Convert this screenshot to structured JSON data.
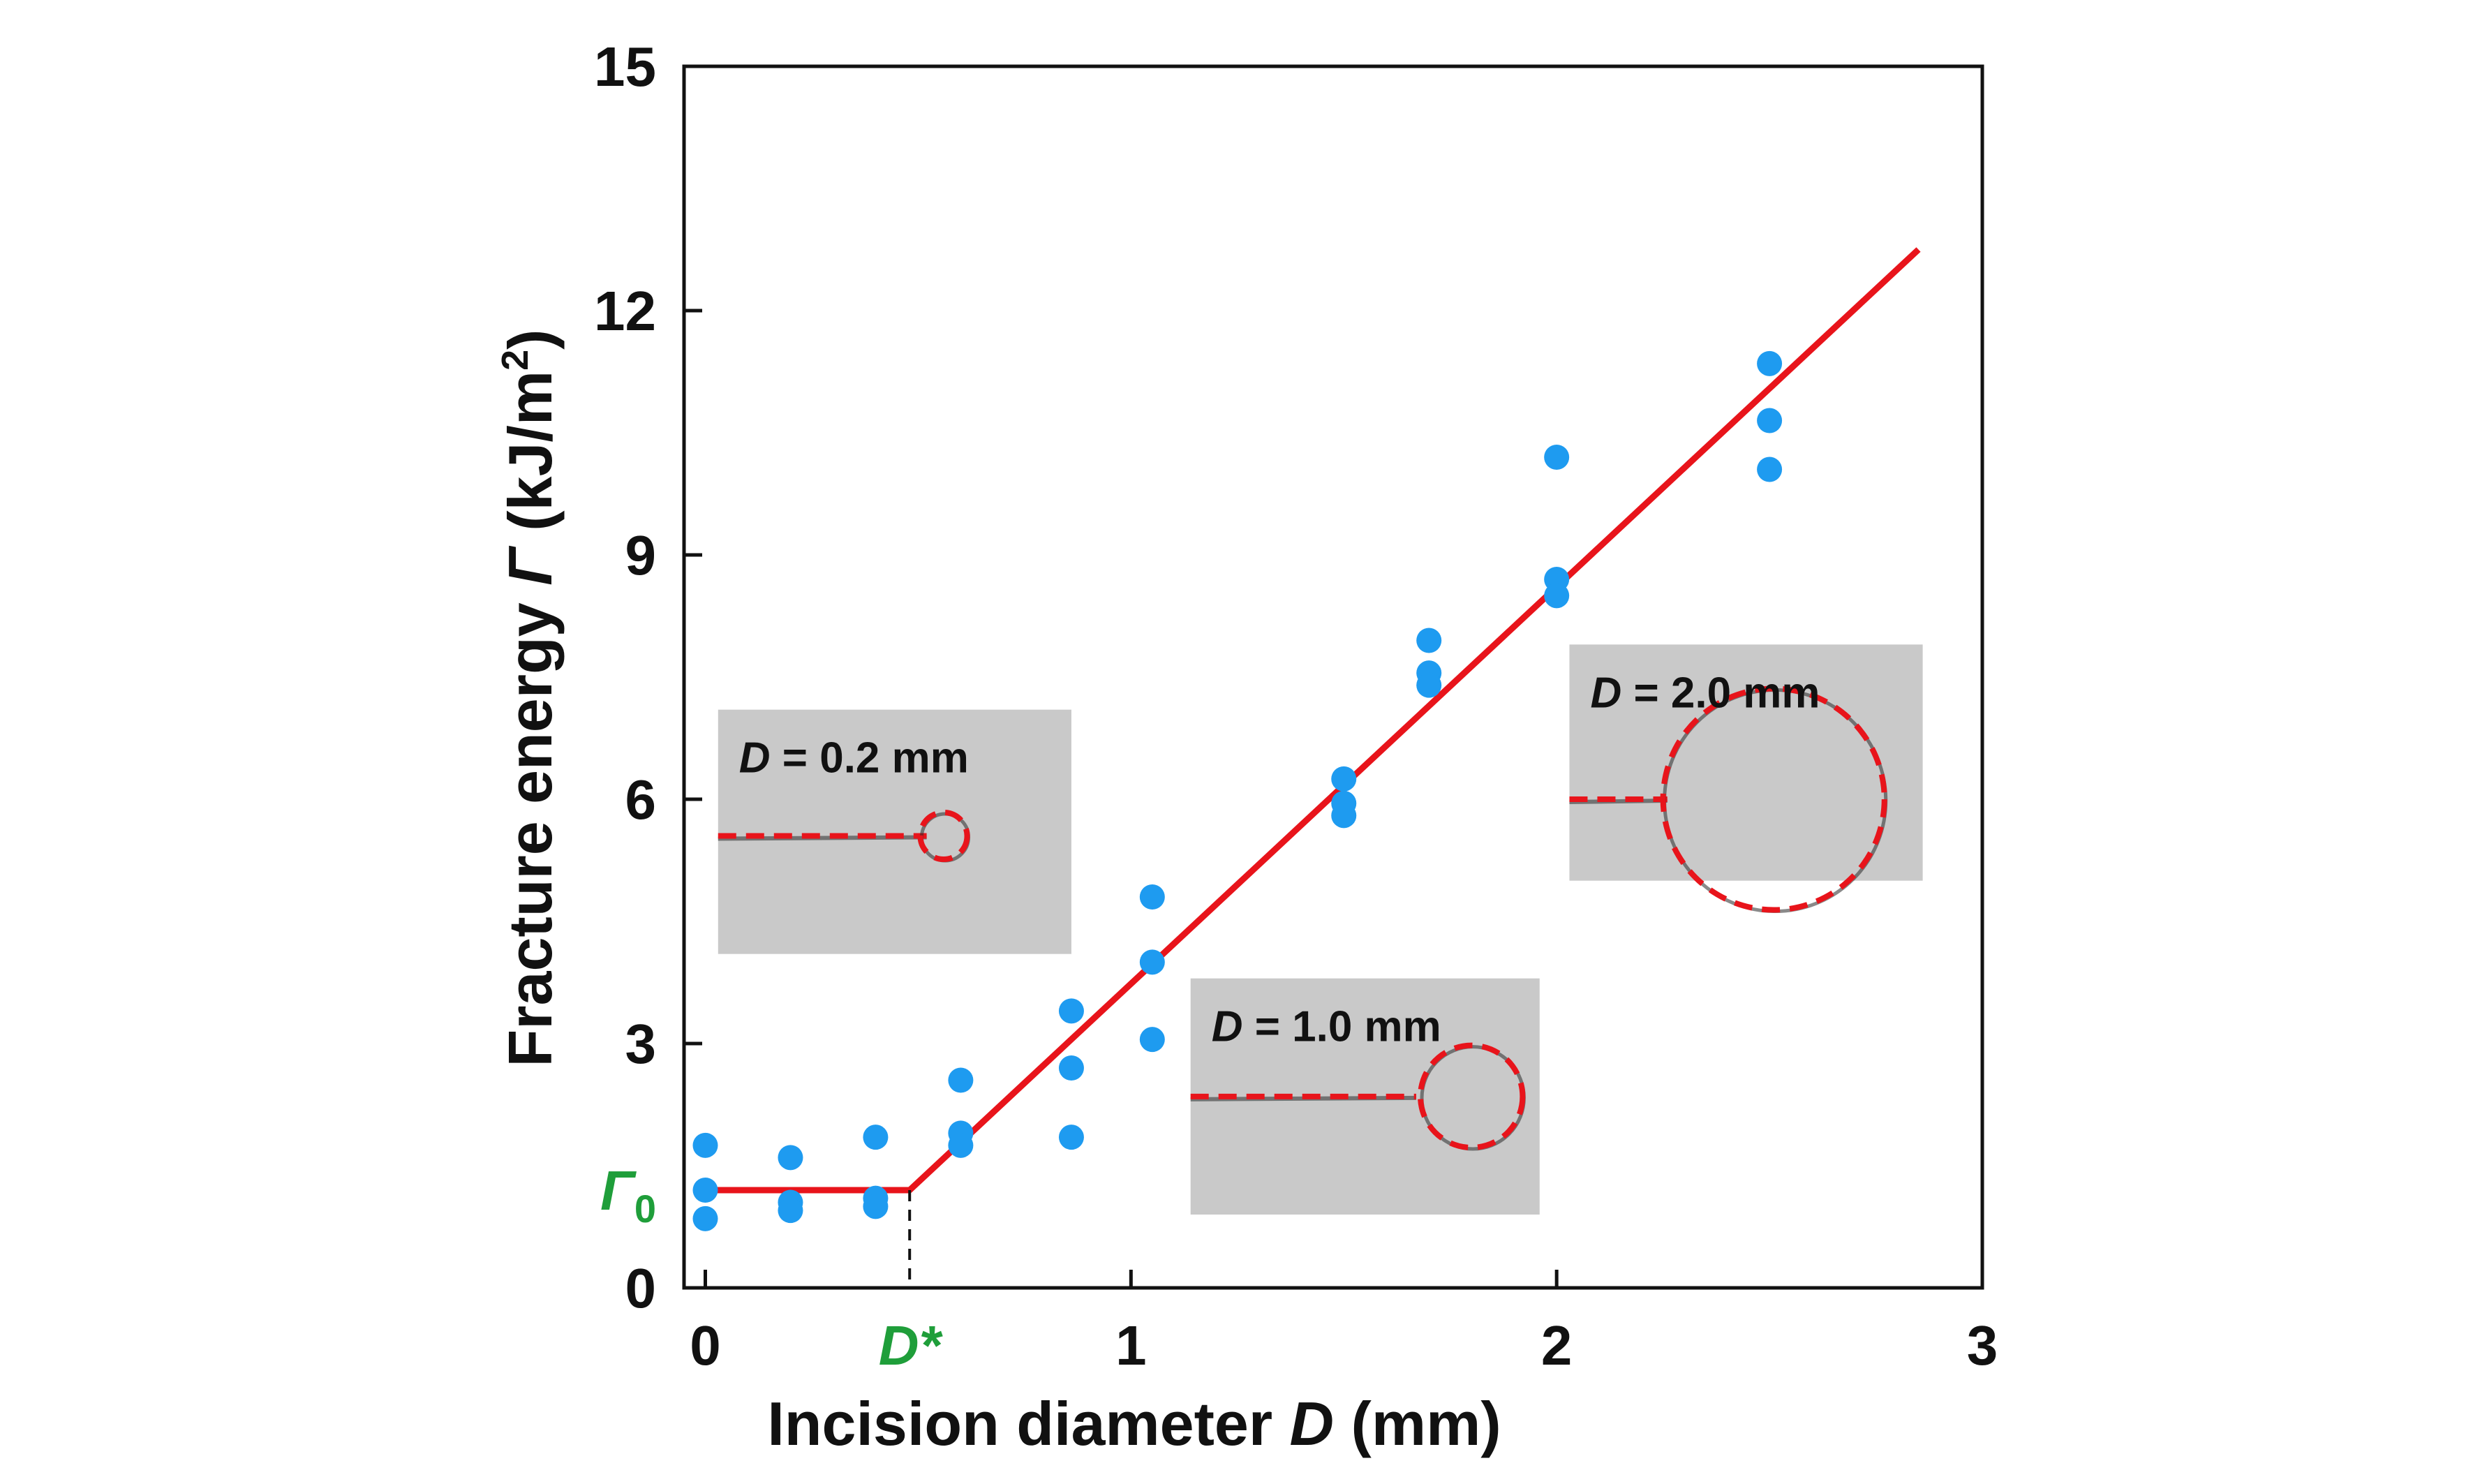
{
  "chart_data": {
    "type": "scatter",
    "xlabel_prefix": "Incision diameter ",
    "xlabel_symbol": "D",
    "xlabel_unit": " (mm)",
    "ylabel_prefix": "Fracture energy ",
    "ylabel_symbol": "Γ",
    "ylabel_unit_pre": " (kJ/m",
    "ylabel_unit_sup": "2",
    "ylabel_unit_post": ")",
    "xlim": [
      -0.05,
      3
    ],
    "ylim": [
      0,
      15
    ],
    "x_ticks": [
      0,
      1,
      2,
      3
    ],
    "x_tick_labels": [
      "0",
      "1",
      "2",
      "3"
    ],
    "y_ticks": [
      0,
      3,
      6,
      9,
      12,
      15
    ],
    "y_tick_labels": [
      "0",
      "3",
      "6",
      "9",
      "12",
      "15"
    ],
    "marker_x": {
      "value": 0.48,
      "label": "D*"
    },
    "marker_y": {
      "value": 1.2,
      "label_symbol": "Γ",
      "label_sub": "0"
    },
    "colors": {
      "points": "#1e9bf0",
      "fit": "#e8141b",
      "marker": "#1f9e3a",
      "axis": "#111111"
    },
    "points": [
      {
        "x": 0,
        "y": 1.75
      },
      {
        "x": 0,
        "y": 1.2
      },
      {
        "x": 0,
        "y": 0.85
      },
      {
        "x": 0.2,
        "y": 1.6
      },
      {
        "x": 0.2,
        "y": 1.05
      },
      {
        "x": 0.2,
        "y": 0.95
      },
      {
        "x": 0.4,
        "y": 1.85
      },
      {
        "x": 0.4,
        "y": 1.1
      },
      {
        "x": 0.4,
        "y": 1.0
      },
      {
        "x": 0.6,
        "y": 2.55
      },
      {
        "x": 0.6,
        "y": 1.9
      },
      {
        "x": 0.6,
        "y": 1.75
      },
      {
        "x": 0.86,
        "y": 3.4
      },
      {
        "x": 0.86,
        "y": 2.7
      },
      {
        "x": 0.86,
        "y": 1.85
      },
      {
        "x": 1.05,
        "y": 4.8
      },
      {
        "x": 1.05,
        "y": 4.0
      },
      {
        "x": 1.05,
        "y": 3.05
      },
      {
        "x": 1.5,
        "y": 6.25
      },
      {
        "x": 1.5,
        "y": 5.95
      },
      {
        "x": 1.5,
        "y": 5.8
      },
      {
        "x": 1.7,
        "y": 7.95
      },
      {
        "x": 1.7,
        "y": 7.55
      },
      {
        "x": 1.7,
        "y": 7.4
      },
      {
        "x": 2.0,
        "y": 10.2
      },
      {
        "x": 2.0,
        "y": 8.7
      },
      {
        "x": 2.0,
        "y": 8.5
      },
      {
        "x": 2.5,
        "y": 11.35
      },
      {
        "x": 2.5,
        "y": 10.65
      },
      {
        "x": 2.5,
        "y": 10.05
      }
    ],
    "fit_line": {
      "x": [
        0,
        0.48,
        2.85
      ],
      "y": [
        1.2,
        1.2,
        12.75
      ]
    },
    "insets": [
      {
        "label_symbol": "D",
        "label_text": " = 0.2 mm",
        "x0": 0.03,
        "x1": 0.86,
        "y0": 4.1,
        "y1": 7.1,
        "notch_x0": 0.03,
        "notch_x1": 0.52,
        "notch_y": 5.55,
        "hole_cx": 0.56,
        "hole_cy": 5.55,
        "hole_r": 0.055
      },
      {
        "label_symbol": "D",
        "label_text": " = 1.0 mm",
        "x0": 1.14,
        "x1": 1.96,
        "y0": 0.9,
        "y1": 3.8,
        "notch_x0": 1.14,
        "notch_x1": 1.67,
        "notch_y": 2.35,
        "hole_cx": 1.8,
        "hole_cy": 2.35,
        "hole_r": 0.12
      },
      {
        "label_symbol": "D",
        "label_text": " = 2.0 mm",
        "x0": 2.03,
        "x1": 2.86,
        "y0": 5.0,
        "y1": 7.9,
        "notch_x0": 2.03,
        "notch_x1": 2.26,
        "notch_y": 6.0,
        "hole_cx": 2.51,
        "hole_cy": 6.0,
        "hole_r": 0.26
      }
    ]
  }
}
